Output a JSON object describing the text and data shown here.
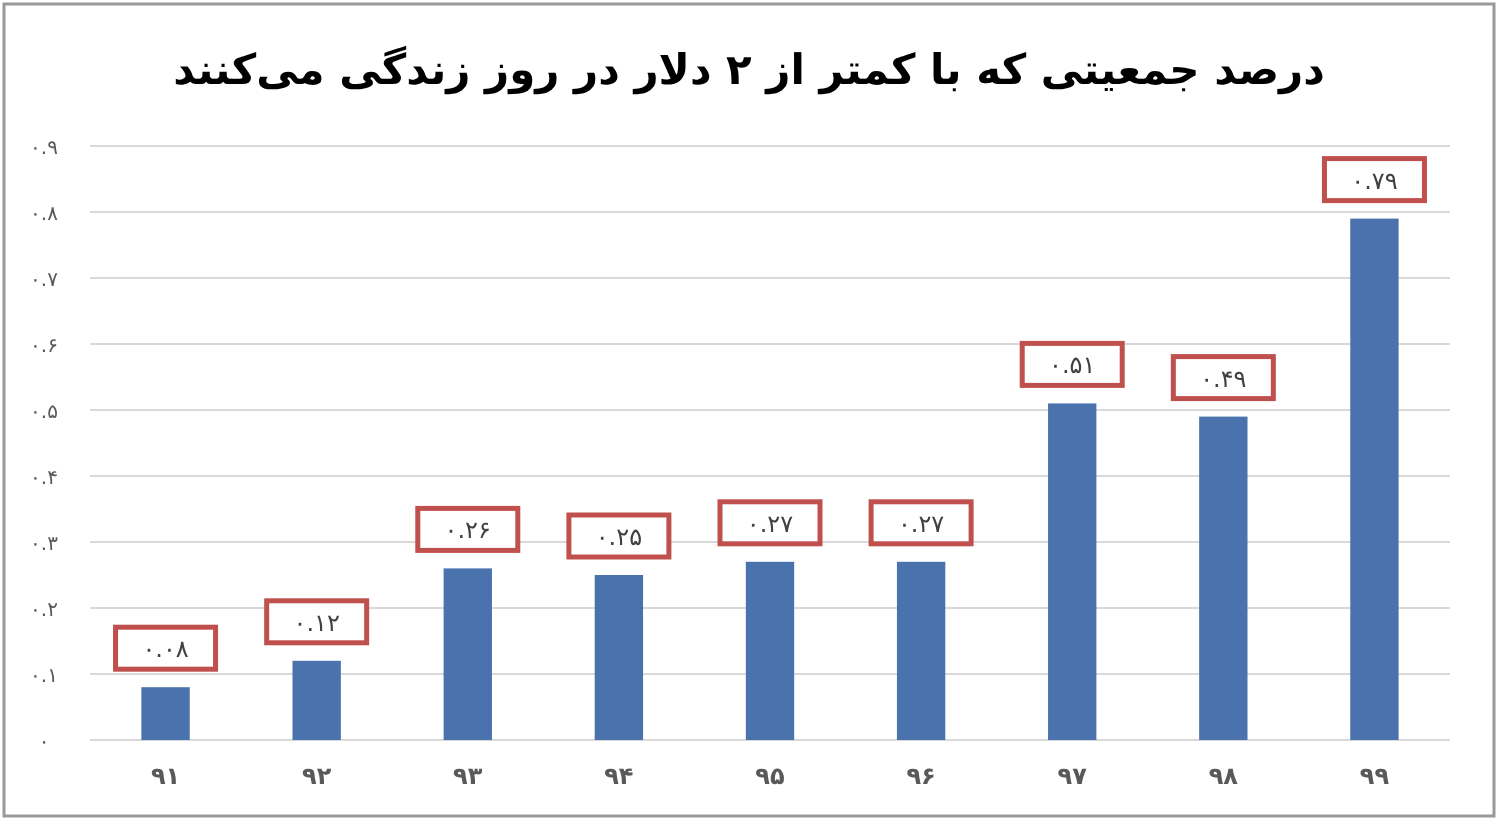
{
  "chart_data": {
    "type": "bar",
    "title": "درصد جمعیتی که با کمتر از ۲ دلار در روز زندگی می‌کنند",
    "categories": [
      "۹۱",
      "۹۲",
      "۹۳",
      "۹۴",
      "۹۵",
      "۹۶",
      "۹۷",
      "۹۸",
      "۹۹"
    ],
    "values": [
      0.08,
      0.12,
      0.26,
      0.25,
      0.27,
      0.27,
      0.51,
      0.49,
      0.79
    ],
    "value_labels": [
      "۰.۰۸",
      "۰.۱۲",
      "۰.۲۶",
      "۰.۲۵",
      "۰.۲۷",
      "۰.۲۷",
      "۰.۵۱",
      "۰.۴۹",
      "۰.۷۹"
    ],
    "color": "#4a73ad",
    "ylim": [
      0,
      0.9
    ],
    "yticks": [
      {
        "value": 0,
        "label": "۰"
      },
      {
        "value": 0.1,
        "label": "۰.۱"
      },
      {
        "value": 0.2,
        "label": "۰.۲"
      },
      {
        "value": 0.3,
        "label": "۰.۳"
      },
      {
        "value": 0.4,
        "label": "۰.۴"
      },
      {
        "value": 0.5,
        "label": "۰.۵"
      },
      {
        "value": 0.6,
        "label": "۰.۶"
      },
      {
        "value": 0.7,
        "label": "۰.۷"
      },
      {
        "value": 0.8,
        "label": "۰.۸"
      },
      {
        "value": 0.9,
        "label": "۰.۹"
      }
    ],
    "grid": "y"
  }
}
